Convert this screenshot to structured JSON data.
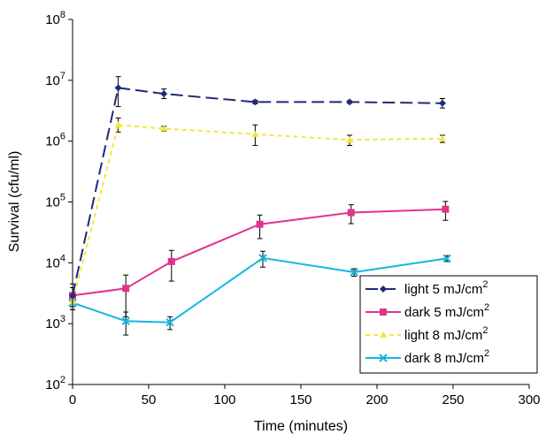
{
  "chart_data": {
    "type": "line",
    "title": "",
    "xlabel": "Time (minutes)",
    "ylabel": "Survival (cfu/ml)",
    "xlim": [
      0,
      300
    ],
    "ylim": [
      100,
      100000000
    ],
    "yscale": "log",
    "xticks": [
      0,
      50,
      100,
      150,
      200,
      250,
      300
    ],
    "yticks": [
      {
        "value": 100,
        "base": "10",
        "exp": "2"
      },
      {
        "value": 1000,
        "base": "10",
        "exp": "3"
      },
      {
        "value": 10000,
        "base": "10",
        "exp": "4"
      },
      {
        "value": 100000,
        "base": "10",
        "exp": "5"
      },
      {
        "value": 1000000,
        "base": "10",
        "exp": "6"
      },
      {
        "value": 10000000,
        "base": "10",
        "exp": "7"
      },
      {
        "value": 100000000,
        "base": "10",
        "exp": "8"
      }
    ],
    "grid": false,
    "legend_position": "bottom-right",
    "series": [
      {
        "name": "light 5 mJ/cm",
        "name_sup": "2",
        "color": "#1f2a7c",
        "dash": "long-dash",
        "marker": "diamond",
        "points": [
          {
            "x": 0,
            "y": 2900,
            "err": [
              1700,
              4500
            ]
          },
          {
            "x": 30,
            "y": 7500000,
            "err": [
              3700000,
              11500000
            ]
          },
          {
            "x": 60,
            "y": 6000000,
            "err": [
              5000000,
              7200000
            ]
          },
          {
            "x": 120,
            "y": 4400000,
            "err": [
              4100000,
              4700000
            ]
          },
          {
            "x": 182,
            "y": 4400000,
            "err": [
              4200000,
              4600000
            ]
          },
          {
            "x": 243,
            "y": 4200000,
            "err": [
              3500000,
              5000000
            ]
          }
        ]
      },
      {
        "name": "dark 5 mJ/cm",
        "name_sup": "2",
        "color": "#e0338e",
        "dash": "solid",
        "marker": "square",
        "points": [
          {
            "x": 0,
            "y": 2900,
            "err": [
              1900,
              3900
            ]
          },
          {
            "x": 35,
            "y": 3800,
            "err": [
              1300,
              6300
            ]
          },
          {
            "x": 65,
            "y": 10500,
            "err": [
              5000,
              16000
            ]
          },
          {
            "x": 123,
            "y": 43000,
            "err": [
              25000,
              61000
            ]
          },
          {
            "x": 183,
            "y": 67000,
            "err": [
              44000,
              90000
            ]
          },
          {
            "x": 245,
            "y": 76000,
            "err": [
              50000,
              102000
            ]
          }
        ]
      },
      {
        "name": "light 8 mJ/cm",
        "name_sup": "2",
        "color": "#f2e83a",
        "dash": "short-dash",
        "marker": "triangle",
        "points": [
          {
            "x": 0,
            "y": 2300,
            "err": [
              1700,
              2900
            ]
          },
          {
            "x": 30,
            "y": 1850000,
            "err": [
              1400000,
              2400000
            ]
          },
          {
            "x": 60,
            "y": 1600000,
            "err": [
              1450000,
              1750000
            ]
          },
          {
            "x": 120,
            "y": 1300000,
            "err": [
              850000,
              1850000
            ]
          },
          {
            "x": 182,
            "y": 1050000,
            "err": [
              850000,
              1250000
            ]
          },
          {
            "x": 243,
            "y": 1100000,
            "err": [
              950000,
              1250000
            ]
          }
        ]
      },
      {
        "name": "dark 8 mJ/cm",
        "name_sup": "2",
        "color": "#16b6de",
        "dash": "solid",
        "marker": "x",
        "points": [
          {
            "x": 0,
            "y": 2200,
            "err": [
              1900,
              2600
            ]
          },
          {
            "x": 35,
            "y": 1100,
            "err": [
              650,
              1550
            ]
          },
          {
            "x": 64,
            "y": 1050,
            "err": [
              800,
              1300
            ]
          },
          {
            "x": 125,
            "y": 12000,
            "err": [
              8500,
              15500
            ]
          },
          {
            "x": 185,
            "y": 7000,
            "err": [
              6000,
              8000
            ]
          },
          {
            "x": 246,
            "y": 11800,
            "err": [
              10500,
              13100
            ]
          }
        ]
      }
    ]
  }
}
